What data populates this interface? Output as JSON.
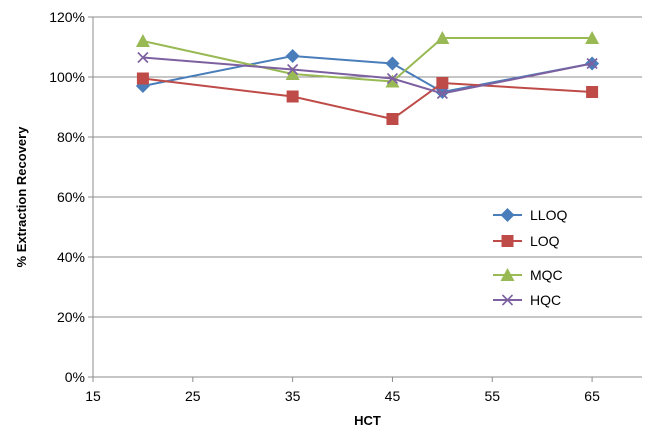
{
  "chart_data": {
    "type": "line",
    "title": "",
    "xlabel": "HCT",
    "ylabel": "% Extraction Recovery",
    "xlim": [
      15,
      70
    ],
    "ylim": [
      0,
      1.2
    ],
    "xticks": [
      15,
      25,
      35,
      45,
      55,
      65
    ],
    "yticks": [
      0,
      0.2,
      0.4,
      0.6,
      0.8,
      1.0,
      1.2
    ],
    "ytick_labels": [
      "0%",
      "20%",
      "40%",
      "60%",
      "80%",
      "100%",
      "120%"
    ],
    "grid": "horizontal",
    "legend_position": "right",
    "series": [
      {
        "name": "LLOQ",
        "color": "#4a7ebb",
        "marker": "diamond",
        "x": [
          20,
          35,
          45,
          50,
          65
        ],
        "values": [
          0.97,
          1.07,
          1.045,
          0.95,
          1.045
        ]
      },
      {
        "name": "LOQ",
        "color": "#be4b48",
        "marker": "square",
        "x": [
          20,
          35,
          45,
          50,
          65
        ],
        "values": [
          0.995,
          0.935,
          0.86,
          0.98,
          0.95
        ]
      },
      {
        "name": "MQC",
        "color": "#98b954",
        "marker": "triangle",
        "x": [
          20,
          35,
          45,
          50,
          65
        ],
        "values": [
          1.12,
          1.01,
          0.985,
          1.13,
          1.13
        ]
      },
      {
        "name": "HQC",
        "color": "#7d60a0",
        "marker": "x",
        "x": [
          20,
          35,
          45,
          50,
          65
        ],
        "values": [
          1.065,
          1.025,
          0.995,
          0.945,
          1.045
        ]
      }
    ]
  }
}
